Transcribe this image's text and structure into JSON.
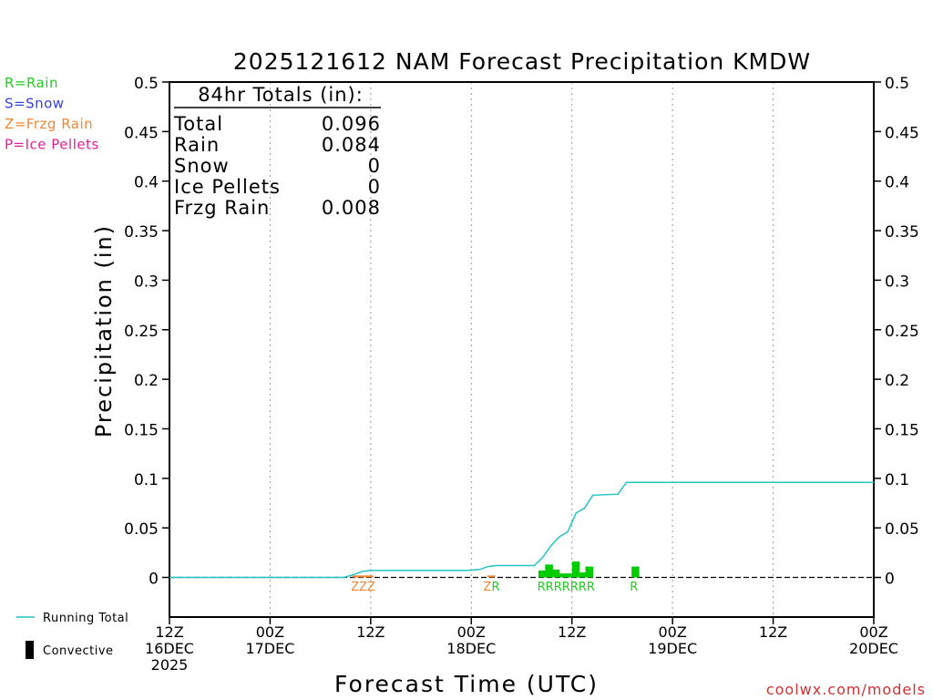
{
  "chart_data": {
    "type": "bar",
    "title": "2025121612 NAM Forecast Precipitation KMDW",
    "xlabel": "Forecast Time (UTC)",
    "ylabel": "Precipitation (in)",
    "ylim": [
      -0.04,
      0.5
    ],
    "xlim": [
      0,
      84
    ],
    "y_ticks": [
      0,
      0.05,
      0.1,
      0.15,
      0.2,
      0.25,
      0.3,
      0.35,
      0.4,
      0.45,
      0.5
    ],
    "y_tick_labels": [
      "0",
      "0.05",
      "0.1",
      "0.15",
      "0.2",
      "0.25",
      "0.3",
      "0.35",
      "0.4",
      "0.45",
      "0.5"
    ],
    "x_ticks": [
      {
        "h": 0,
        "lines": [
          "12Z",
          "16DEC",
          "2025"
        ]
      },
      {
        "h": 12,
        "lines": [
          "00Z",
          "17DEC"
        ]
      },
      {
        "h": 24,
        "lines": [
          "12Z"
        ]
      },
      {
        "h": 36,
        "lines": [
          "00Z",
          "18DEC"
        ]
      },
      {
        "h": 48,
        "lines": [
          "12Z"
        ]
      },
      {
        "h": 60,
        "lines": [
          "00Z",
          "19DEC"
        ]
      },
      {
        "h": 72,
        "lines": [
          "12Z"
        ]
      },
      {
        "h": 84,
        "lines": [
          "00Z",
          "20DEC"
        ]
      }
    ],
    "gridlines_hours": [
      12,
      24,
      36,
      48,
      60,
      72
    ],
    "legend_type": {
      "items": [
        {
          "label": "R=Rain",
          "color": "#22cc22"
        },
        {
          "label": "S=Snow",
          "color": "#3344dd"
        },
        {
          "label": "Z=Frzg Rain",
          "color": "#ee8833"
        },
        {
          "label": "P=Ice Pellets",
          "color": "#dd2299"
        }
      ]
    },
    "legend_series": {
      "running_total": "Running Total",
      "convective": "Convective"
    },
    "totals": {
      "heading": "84hr Totals (in):",
      "rows": [
        {
          "label": "Total",
          "value": "0.096"
        },
        {
          "label": "Rain",
          "value": "0.084"
        },
        {
          "label": "Snow",
          "value": "0"
        },
        {
          "label": "Ice Pellets",
          "value": "0"
        },
        {
          "label": "Frzg Rain",
          "value": "0.008"
        }
      ]
    },
    "series": [
      {
        "name": "Running Total",
        "type": "line",
        "color": "#22c4c4",
        "points": [
          [
            0,
            0
          ],
          [
            20.8,
            0
          ],
          [
            22,
            0.003
          ],
          [
            23,
            0.006
          ],
          [
            24,
            0.007
          ],
          [
            35.5,
            0.007
          ],
          [
            37,
            0.008
          ],
          [
            38,
            0.011
          ],
          [
            39,
            0.012
          ],
          [
            43.5,
            0.012
          ],
          [
            44.5,
            0.02
          ],
          [
            45.5,
            0.032
          ],
          [
            46.5,
            0.041
          ],
          [
            47.5,
            0.046
          ],
          [
            48.5,
            0.065
          ],
          [
            49.5,
            0.07
          ],
          [
            50.5,
            0.083
          ],
          [
            53.5,
            0.084
          ],
          [
            54.5,
            0.096
          ],
          [
            84,
            0.096
          ]
        ]
      },
      {
        "name": "Frzg Rain bars",
        "type": "bar",
        "color": "#ee8833",
        "bars": [
          {
            "x": 22.3,
            "v": 0.002
          },
          {
            "x": 23.1,
            "v": 0.002
          },
          {
            "x": 23.9,
            "v": 0.002
          },
          {
            "x": 38.4,
            "v": 0.002
          }
        ]
      },
      {
        "name": "Rain bars",
        "type": "bar",
        "color": "#00cc00",
        "bars": [
          {
            "x": 44.5,
            "v": 0.007
          },
          {
            "x": 45.3,
            "v": 0.013
          },
          {
            "x": 46.1,
            "v": 0.008
          },
          {
            "x": 46.9,
            "v": 0.004
          },
          {
            "x": 47.7,
            "v": 0.004
          },
          {
            "x": 48.5,
            "v": 0.016
          },
          {
            "x": 49.3,
            "v": 0.005
          },
          {
            "x": 50.1,
            "v": 0.011
          },
          {
            "x": 55.6,
            "v": 0.011
          }
        ]
      }
    ],
    "type_labels": [
      {
        "x": 23.1,
        "text": "ZZZ",
        "color": "#ee8833"
      },
      {
        "x": 37.9,
        "text": "Z",
        "color": "#ee8833"
      },
      {
        "x": 38.9,
        "text": "R",
        "color": "#22cc22"
      },
      {
        "x": 47.3,
        "text": "RRRRRRR",
        "color": "#22cc22"
      },
      {
        "x": 55.4,
        "text": "R",
        "color": "#22cc22"
      }
    ]
  },
  "footer": {
    "credit": "coolwx.com/models",
    "credit_color": "#cc3333"
  }
}
